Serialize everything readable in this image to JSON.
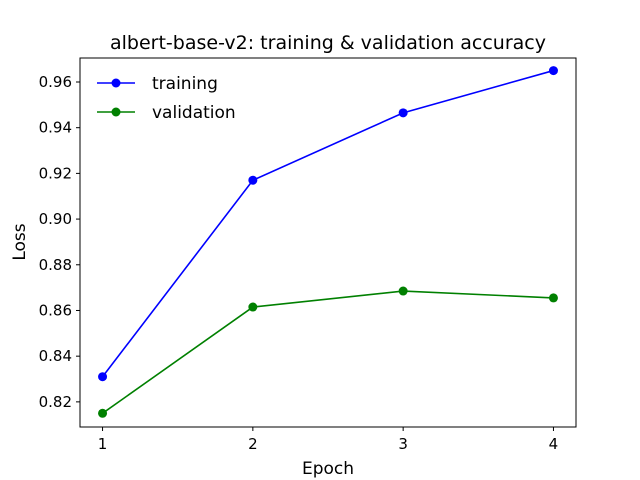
{
  "chart_data": {
    "type": "line",
    "title": "albert-base-v2: training & validation accuracy",
    "xlabel": "Epoch",
    "ylabel": "Loss",
    "x": [
      1,
      2,
      3,
      4
    ],
    "xlim": [
      0.85,
      4.15
    ],
    "ylim": [
      0.809,
      0.9705
    ],
    "yticks": [
      0.82,
      0.84,
      0.86,
      0.88,
      0.9,
      0.92,
      0.94,
      0.96
    ],
    "ytick_labels": [
      "0.82",
      "0.84",
      "0.86",
      "0.88",
      "0.90",
      "0.92",
      "0.94",
      "0.96"
    ],
    "xtick_labels": [
      "1",
      "2",
      "3",
      "4"
    ],
    "grid": false,
    "legend_position": "top-left",
    "series": [
      {
        "name": "training",
        "color": "#0000ff",
        "marker": "circle",
        "values": [
          0.831,
          0.917,
          0.9465,
          0.965
        ]
      },
      {
        "name": "validation",
        "color": "#008000",
        "marker": "circle",
        "values": [
          0.815,
          0.8615,
          0.8685,
          0.8655
        ]
      }
    ]
  }
}
